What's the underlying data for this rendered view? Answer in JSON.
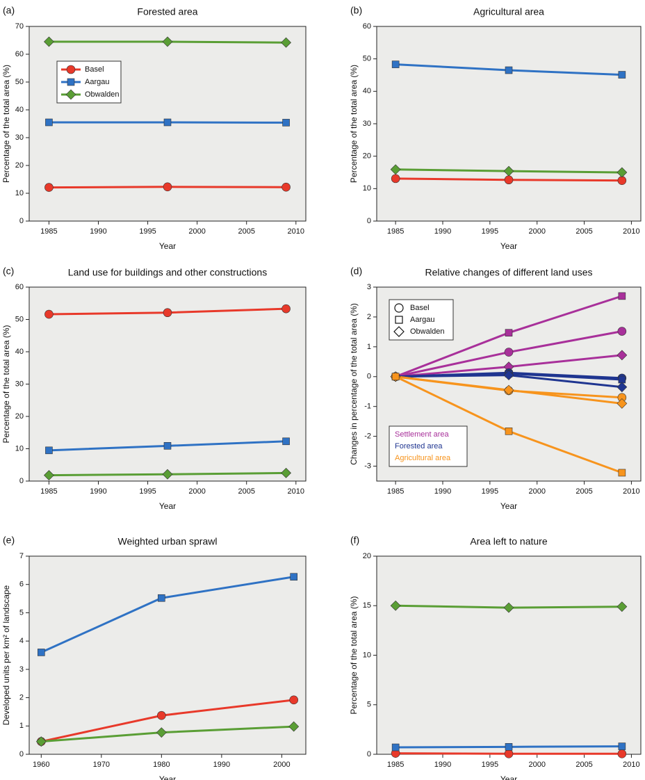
{
  "chart_data": [
    {
      "type": "line",
      "label": "(a)",
      "title": "Forested area",
      "xlabel": "Year",
      "ylabel": "Percentage of the total area (%)",
      "x": [
        1985,
        1997,
        2009
      ],
      "xlim": [
        1983,
        2011
      ],
      "xticks": [
        1985,
        1990,
        1995,
        2000,
        2005,
        2010
      ],
      "ylim": [
        0,
        70
      ],
      "yticks": [
        0,
        10,
        20,
        30,
        40,
        50,
        60,
        70
      ],
      "legend": "upper left",
      "series": [
        {
          "name": "Basel",
          "color": "#e8392a",
          "marker": "circle",
          "values": [
            12.1,
            12.3,
            12.2
          ]
        },
        {
          "name": "Aargau",
          "color": "#2f72c4",
          "marker": "square",
          "values": [
            35.5,
            35.5,
            35.4
          ]
        },
        {
          "name": "Obwalden",
          "color": "#5a9e35",
          "marker": "diamond",
          "values": [
            64.5,
            64.5,
            64.2
          ]
        }
      ]
    },
    {
      "type": "line",
      "label": "(b)",
      "title": "Agricultural area",
      "xlabel": "Year",
      "ylabel": "Percentage of the total area (%)",
      "x": [
        1985,
        1997,
        2009
      ],
      "xlim": [
        1983,
        2011
      ],
      "xticks": [
        1985,
        1990,
        1995,
        2000,
        2005,
        2010
      ],
      "ylim": [
        0,
        60
      ],
      "yticks": [
        0,
        10,
        20,
        30,
        40,
        50,
        60
      ],
      "series": [
        {
          "color": "#e8392a",
          "marker": "circle",
          "values": [
            13.1,
            12.7,
            12.5
          ]
        },
        {
          "color": "#2f72c4",
          "marker": "square",
          "values": [
            48.3,
            46.5,
            45.1
          ]
        },
        {
          "color": "#5a9e35",
          "marker": "diamond",
          "values": [
            15.9,
            15.4,
            15.0
          ]
        }
      ]
    },
    {
      "type": "line",
      "label": "(c)",
      "title": "Land use for buildings and other constructions",
      "xlabel": "Year",
      "ylabel": "Percentage of the total area (%)",
      "x": [
        1985,
        1997,
        2009
      ],
      "xlim": [
        1983,
        2011
      ],
      "xticks": [
        1985,
        1990,
        1995,
        2000,
        2005,
        2010
      ],
      "ylim": [
        0,
        60
      ],
      "yticks": [
        0,
        10,
        20,
        30,
        40,
        50,
        60
      ],
      "series": [
        {
          "color": "#e8392a",
          "marker": "circle",
          "values": [
            51.6,
            52.1,
            53.3
          ]
        },
        {
          "color": "#2f72c4",
          "marker": "square",
          "values": [
            9.5,
            10.9,
            12.3
          ]
        },
        {
          "color": "#5a9e35",
          "marker": "diamond",
          "values": [
            1.8,
            2.1,
            2.5
          ]
        }
      ]
    },
    {
      "type": "line",
      "label": "(d)",
      "title": "Relative changes of different land uses",
      "xlabel": "Year",
      "ylabel": "Changes in percentage of the total area  (%)",
      "x": [
        1985,
        1997,
        2009
      ],
      "xlim": [
        1983,
        2011
      ],
      "xticks": [
        1985,
        1990,
        1995,
        2000,
        2005,
        2010
      ],
      "ylim": [
        -3.5,
        3
      ],
      "yticks": [
        -3,
        -2,
        -1,
        0,
        1,
        2,
        3
      ],
      "legend_markers": [
        {
          "name": "Basel",
          "marker": "circle"
        },
        {
          "name": "Aargau",
          "marker": "square"
        },
        {
          "name": "Obwalden",
          "marker": "diamond"
        }
      ],
      "legend_colors": [
        {
          "name": "Settlement area",
          "color": "#a8309a"
        },
        {
          "name": "Forested area",
          "color": "#1f3590"
        },
        {
          "name": "Agricultural area",
          "color": "#f7941d"
        }
      ],
      "series": [
        {
          "color": "#a8309a",
          "marker": "square",
          "values": [
            0,
            1.47,
            2.7
          ]
        },
        {
          "color": "#a8309a",
          "marker": "circle",
          "values": [
            0,
            0.82,
            1.52
          ]
        },
        {
          "color": "#a8309a",
          "marker": "diamond",
          "values": [
            0,
            0.33,
            0.72
          ]
        },
        {
          "color": "#1f3590",
          "marker": "circle",
          "values": [
            0,
            0.13,
            -0.05
          ]
        },
        {
          "color": "#1f3590",
          "marker": "square",
          "values": [
            0,
            0.1,
            -0.1
          ]
        },
        {
          "color": "#1f3590",
          "marker": "diamond",
          "values": [
            0,
            0.05,
            -0.35
          ]
        },
        {
          "color": "#f7941d",
          "marker": "circle",
          "values": [
            0,
            -0.47,
            -0.7
          ]
        },
        {
          "color": "#f7941d",
          "marker": "diamond",
          "values": [
            0,
            -0.45,
            -0.9
          ]
        },
        {
          "color": "#f7941d",
          "marker": "square",
          "values": [
            0,
            -1.83,
            -3.22
          ]
        }
      ]
    },
    {
      "type": "line",
      "label": "(e)",
      "title": "Weighted urban sprawl",
      "xlabel": "Year",
      "ylabel": "Developed units per km² of landscape",
      "x": [
        1960,
        1980,
        2002
      ],
      "xlim": [
        1958,
        2004
      ],
      "xticks": [
        1960,
        1970,
        1980,
        1990,
        2000
      ],
      "ylim": [
        0,
        7
      ],
      "yticks": [
        0,
        1,
        2,
        3,
        4,
        5,
        6,
        7
      ],
      "series": [
        {
          "color": "#e8392a",
          "marker": "circle",
          "values": [
            0.45,
            1.37,
            1.92
          ]
        },
        {
          "color": "#2f72c4",
          "marker": "square",
          "values": [
            3.6,
            5.52,
            6.27
          ]
        },
        {
          "color": "#5a9e35",
          "marker": "diamond",
          "values": [
            0.45,
            0.77,
            0.98
          ]
        }
      ]
    },
    {
      "type": "line",
      "label": "(f)",
      "title": "Area left to nature",
      "xlabel": "Year",
      "ylabel": "Percentage of the total area (%)",
      "x": [
        1985,
        1997,
        2009
      ],
      "xlim": [
        1983,
        2011
      ],
      "xticks": [
        1985,
        1990,
        1995,
        2000,
        2005,
        2010
      ],
      "ylim": [
        0,
        20
      ],
      "yticks": [
        0,
        5,
        10,
        15,
        20
      ],
      "series": [
        {
          "color": "#e8392a",
          "marker": "circle",
          "values": [
            0.1,
            0.05,
            0.05
          ]
        },
        {
          "color": "#2f72c4",
          "marker": "square",
          "values": [
            0.7,
            0.75,
            0.8
          ]
        },
        {
          "color": "#5a9e35",
          "marker": "diamond",
          "values": [
            15.0,
            14.8,
            14.9
          ]
        }
      ]
    }
  ]
}
